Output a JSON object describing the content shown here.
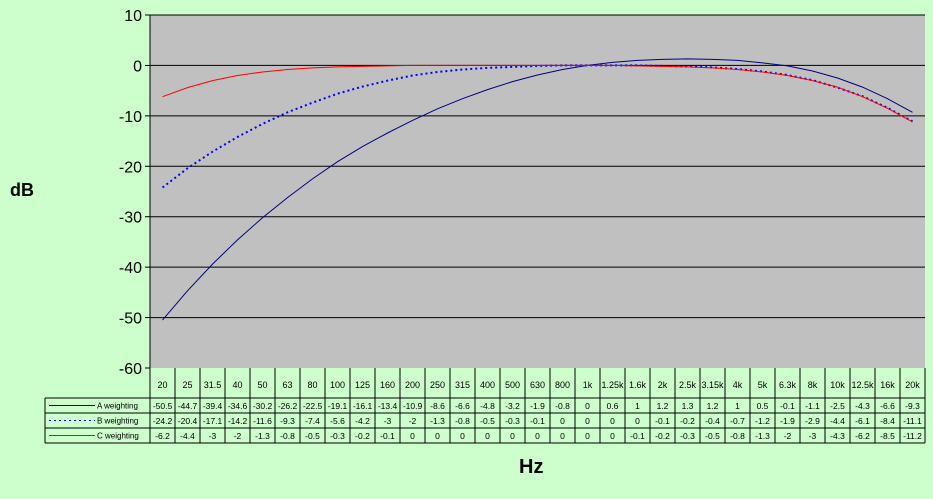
{
  "chart_data": {
    "type": "line",
    "xlabel": "Hz",
    "ylabel": "dB",
    "ylim": [
      -60,
      10
    ],
    "yticks": [
      10,
      0,
      -10,
      -20,
      -30,
      -40,
      -50,
      -60
    ],
    "grid": "horizontal",
    "legend": "data-table-below",
    "categories": [
      "20",
      "25",
      "31.5",
      "40",
      "50",
      "63",
      "80",
      "100",
      "125",
      "160",
      "200",
      "250",
      "315",
      "400",
      "500",
      "630",
      "800",
      "1k",
      "1.25k",
      "1.6k",
      "2k",
      "2.5k",
      "3.15k",
      "4k",
      "5k",
      "6.3k",
      "8k",
      "10k",
      "12.5k",
      "16k",
      "20k"
    ],
    "series": [
      {
        "name": "A weighting",
        "color": "#000080",
        "dash": "solid",
        "values": [
          -50.5,
          -44.7,
          -39.4,
          -34.6,
          -30.2,
          -26.2,
          -22.5,
          -19.1,
          -16.1,
          -13.4,
          -10.9,
          -8.6,
          -6.6,
          -4.8,
          -3.2,
          -1.9,
          -0.8,
          0,
          0.6,
          1,
          1.2,
          1.3,
          1.2,
          1,
          0.5,
          -0.1,
          -1.1,
          -2.5,
          -4.3,
          -6.6,
          -9.3
        ]
      },
      {
        "name": "B weighting",
        "color": "#0000ff",
        "dash": "dotted",
        "values": [
          -24.2,
          -20.4,
          -17.1,
          -14.2,
          -11.6,
          -9.3,
          -7.4,
          -5.6,
          -4.2,
          -3,
          -2,
          -1.3,
          -0.8,
          -0.5,
          -0.3,
          -0.1,
          0,
          0,
          0,
          0,
          -0.1,
          -0.2,
          -0.4,
          -0.7,
          -1.2,
          -1.9,
          -2.9,
          -4.4,
          -6.1,
          -8.4,
          -11.1
        ]
      },
      {
        "name": "C weighting",
        "color": "#ff0000",
        "dash": "solid",
        "values": [
          -6.2,
          -4.4,
          -3,
          -2,
          -1.3,
          -0.8,
          -0.5,
          -0.3,
          -0.2,
          -0.1,
          0,
          0,
          0,
          0,
          0,
          0,
          0,
          0,
          0,
          -0.1,
          -0.2,
          -0.3,
          -0.5,
          -0.8,
          -1.3,
          -2,
          -3,
          -4.3,
          -6.2,
          -8.5,
          -11.2
        ]
      }
    ]
  },
  "colors": {
    "background": "#ccffcc",
    "plot_area": "#c0c0c0"
  }
}
